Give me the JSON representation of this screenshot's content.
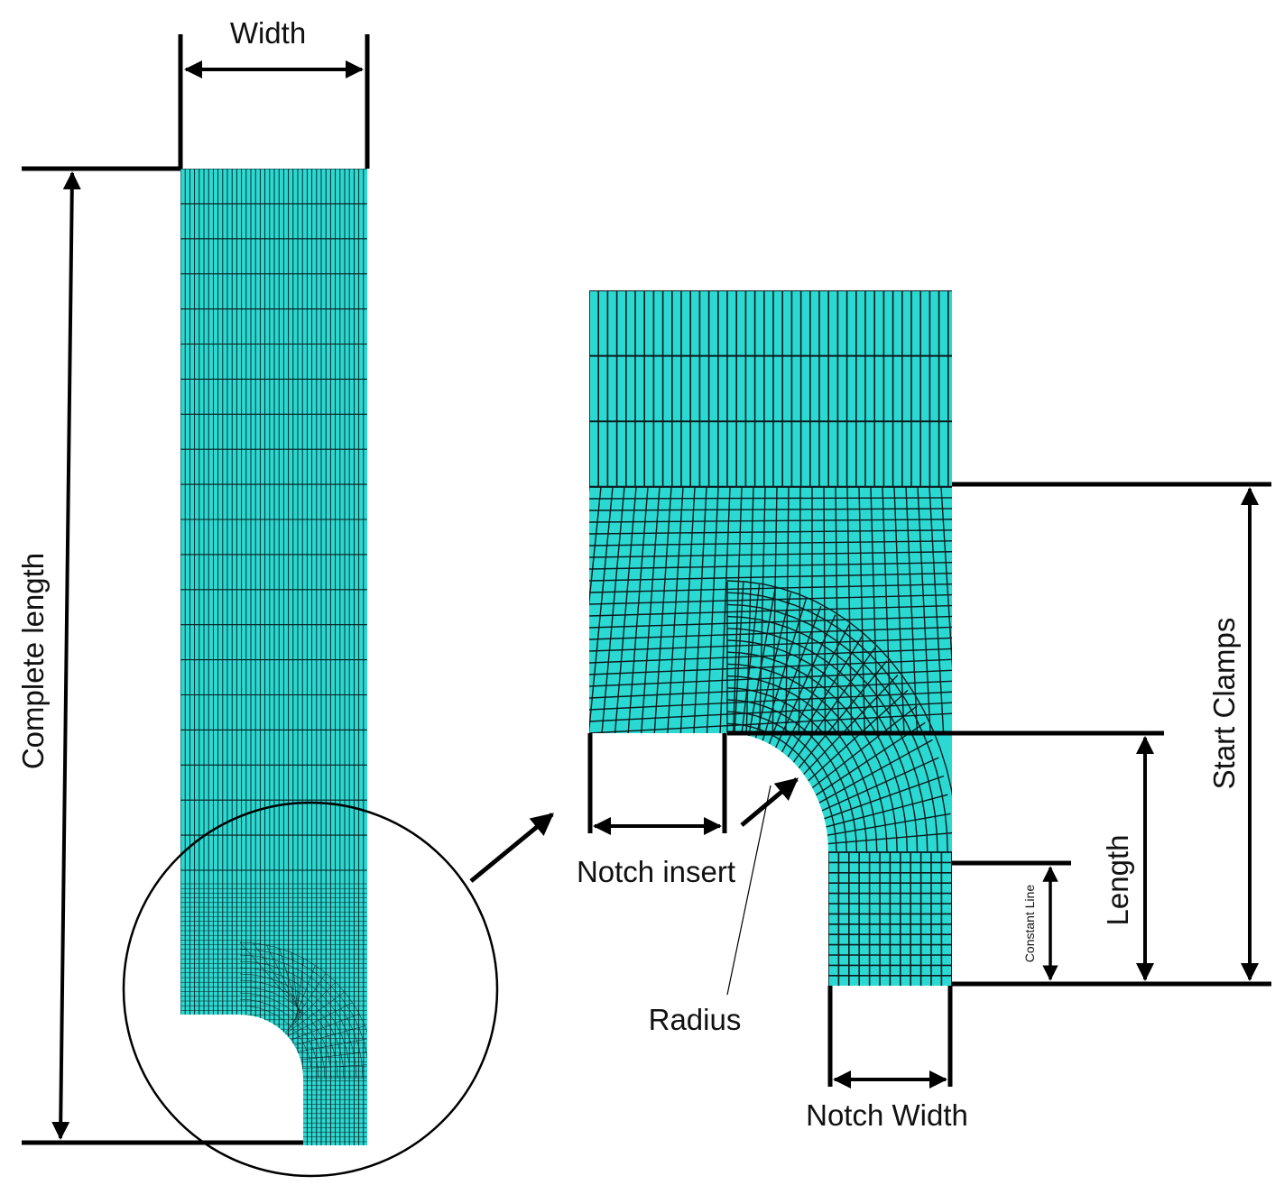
{
  "labels": {
    "width": "Width",
    "complete_length": "Complete length",
    "notch_insert": "Notch insert",
    "radius": "Radius",
    "notch_width": "Notch Width",
    "length": "Length",
    "start_clamps": "Start Clamps",
    "constant_line": "Constant Line"
  },
  "colors": {
    "mesh_fill": "#2ad9d2",
    "mesh_line": "#0d1a1c",
    "dimension_line": "#000000",
    "background": "#ffffff"
  }
}
